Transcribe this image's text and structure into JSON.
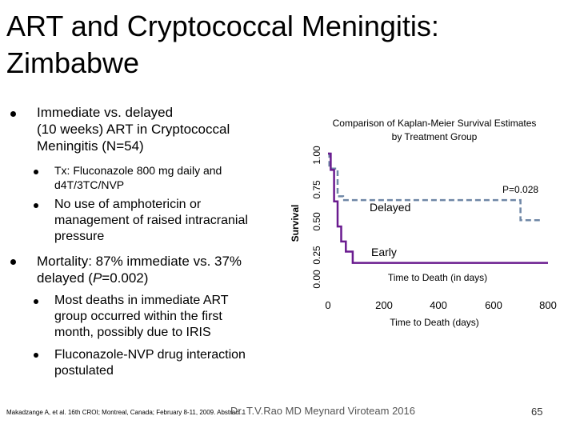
{
  "slide": {
    "title_line1": "ART and Cryptococcal Meningitis:",
    "title_line2": "Zimbabwe",
    "bullets": [
      {
        "lines": [
          "Immediate vs. delayed",
          "(10 weeks) ART in Cryptococcal",
          "Meningitis (N=54)"
        ],
        "subs": [
          {
            "lines": [
              "Tx: Fluconazole 800 mg daily and",
              "d4T/3TC/NVP"
            ]
          },
          {
            "lines": [
              "No use of amphotericin or",
              "management of raised intracranial",
              "pressure"
            ]
          }
        ]
      },
      {
        "lines_rich": {
          "a": "Mortality:  87% immediate vs. 37%",
          "b": "delayed (",
          "p": "P",
          "c": "=0.002)"
        },
        "subs": [
          {
            "lines": [
              "Most deaths in immediate ART",
              "group occurred within the first",
              "month, possibly due to IRIS"
            ]
          },
          {
            "lines": [
              "Fluconazole-NVP drug interaction",
              "postulated"
            ]
          }
        ]
      }
    ],
    "footer_ref": "Makadzange A, et al. 16th CROI; Montreal, Canada; February 8-11, 2009. Abstract 1",
    "footer_watermark": "Dr. T.V.Rao MD Meynard Viroteam 2016",
    "page_number": "65"
  },
  "chart_data": {
    "type": "line",
    "title_line1": "Comparison of Kaplan-Meier Survival Estimates",
    "title_line2": "by Treatment Group",
    "ylabel": "Survival",
    "xlabel": "Time to Death (days)",
    "xlabel_inner": "Time to Death (in days)",
    "yticks": [
      "0.00",
      "0.25",
      "0.50",
      "0.75",
      "1.00"
    ],
    "xticks": [
      "0",
      "200",
      "400",
      "600",
      "800"
    ],
    "xlim": [
      0,
      800
    ],
    "ylim": [
      0,
      1
    ],
    "annotation": "P=0.028",
    "series": [
      {
        "name": "Early",
        "color": "#6a1b8f",
        "style": "solid",
        "points": [
          [
            0,
            1.0
          ],
          [
            10,
            1.0
          ],
          [
            10,
            0.87
          ],
          [
            22,
            0.87
          ],
          [
            22,
            0.62
          ],
          [
            35,
            0.62
          ],
          [
            35,
            0.42
          ],
          [
            48,
            0.42
          ],
          [
            48,
            0.3
          ],
          [
            65,
            0.3
          ],
          [
            65,
            0.22
          ],
          [
            90,
            0.22
          ],
          [
            90,
            0.13
          ],
          [
            800,
            0.13
          ]
        ]
      },
      {
        "name": "Delayed",
        "color": "#6f87a6",
        "style": "dashed",
        "points": [
          [
            0,
            1.0
          ],
          [
            5,
            1.0
          ],
          [
            5,
            0.88
          ],
          [
            35,
            0.88
          ],
          [
            35,
            0.66
          ],
          [
            55,
            0.66
          ],
          [
            55,
            0.63
          ],
          [
            700,
            0.63
          ],
          [
            700,
            0.47
          ],
          [
            780,
            0.47
          ]
        ]
      }
    ]
  }
}
